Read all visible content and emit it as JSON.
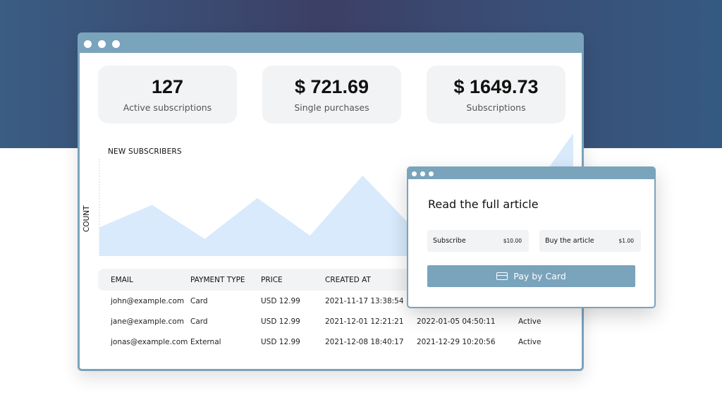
{
  "stats": [
    {
      "value": "127",
      "label": "Active subscriptions"
    },
    {
      "value": "$ 721.69",
      "label": "Single purchases"
    },
    {
      "value": "$ 1649.73",
      "label": "Subscriptions"
    }
  ],
  "chart": {
    "title": "NEW SUBSCRIBERS",
    "ylabel": "COUNT",
    "fill_color": "#d8eafb",
    "values": [
      42,
      75,
      25,
      85,
      30,
      118,
      38,
      55,
      72,
      180
    ]
  },
  "table": {
    "headers": [
      "EMAIL",
      "PAYMENT TYPE",
      "PRICE",
      "CREATED AT",
      "",
      ""
    ],
    "rows": [
      [
        "john@example.com",
        "Card",
        "USD 12.99",
        "2021-11-17 13:38:54",
        "",
        ""
      ],
      [
        "jane@example.com",
        "Card",
        "USD 12.99",
        "2021-12-01 12:21:21",
        "2022-01-05 04:50:11",
        "Active"
      ],
      [
        "jonas@example.com",
        "External",
        "USD 12.99",
        "2021-12-08 18:40:17",
        "2021-12-29 10:20:56",
        "Active"
      ]
    ]
  },
  "popup": {
    "title": "Read the full article",
    "options": [
      {
        "label": "Subscribe",
        "price": "$10.00"
      },
      {
        "label": "Buy the article",
        "price": "$1.00"
      }
    ],
    "pay_label": "Pay by Card",
    "icon": "credit-card-icon"
  },
  "colors": {
    "accent": "#7aa3bc",
    "card_bg": "#f2f3f4"
  }
}
